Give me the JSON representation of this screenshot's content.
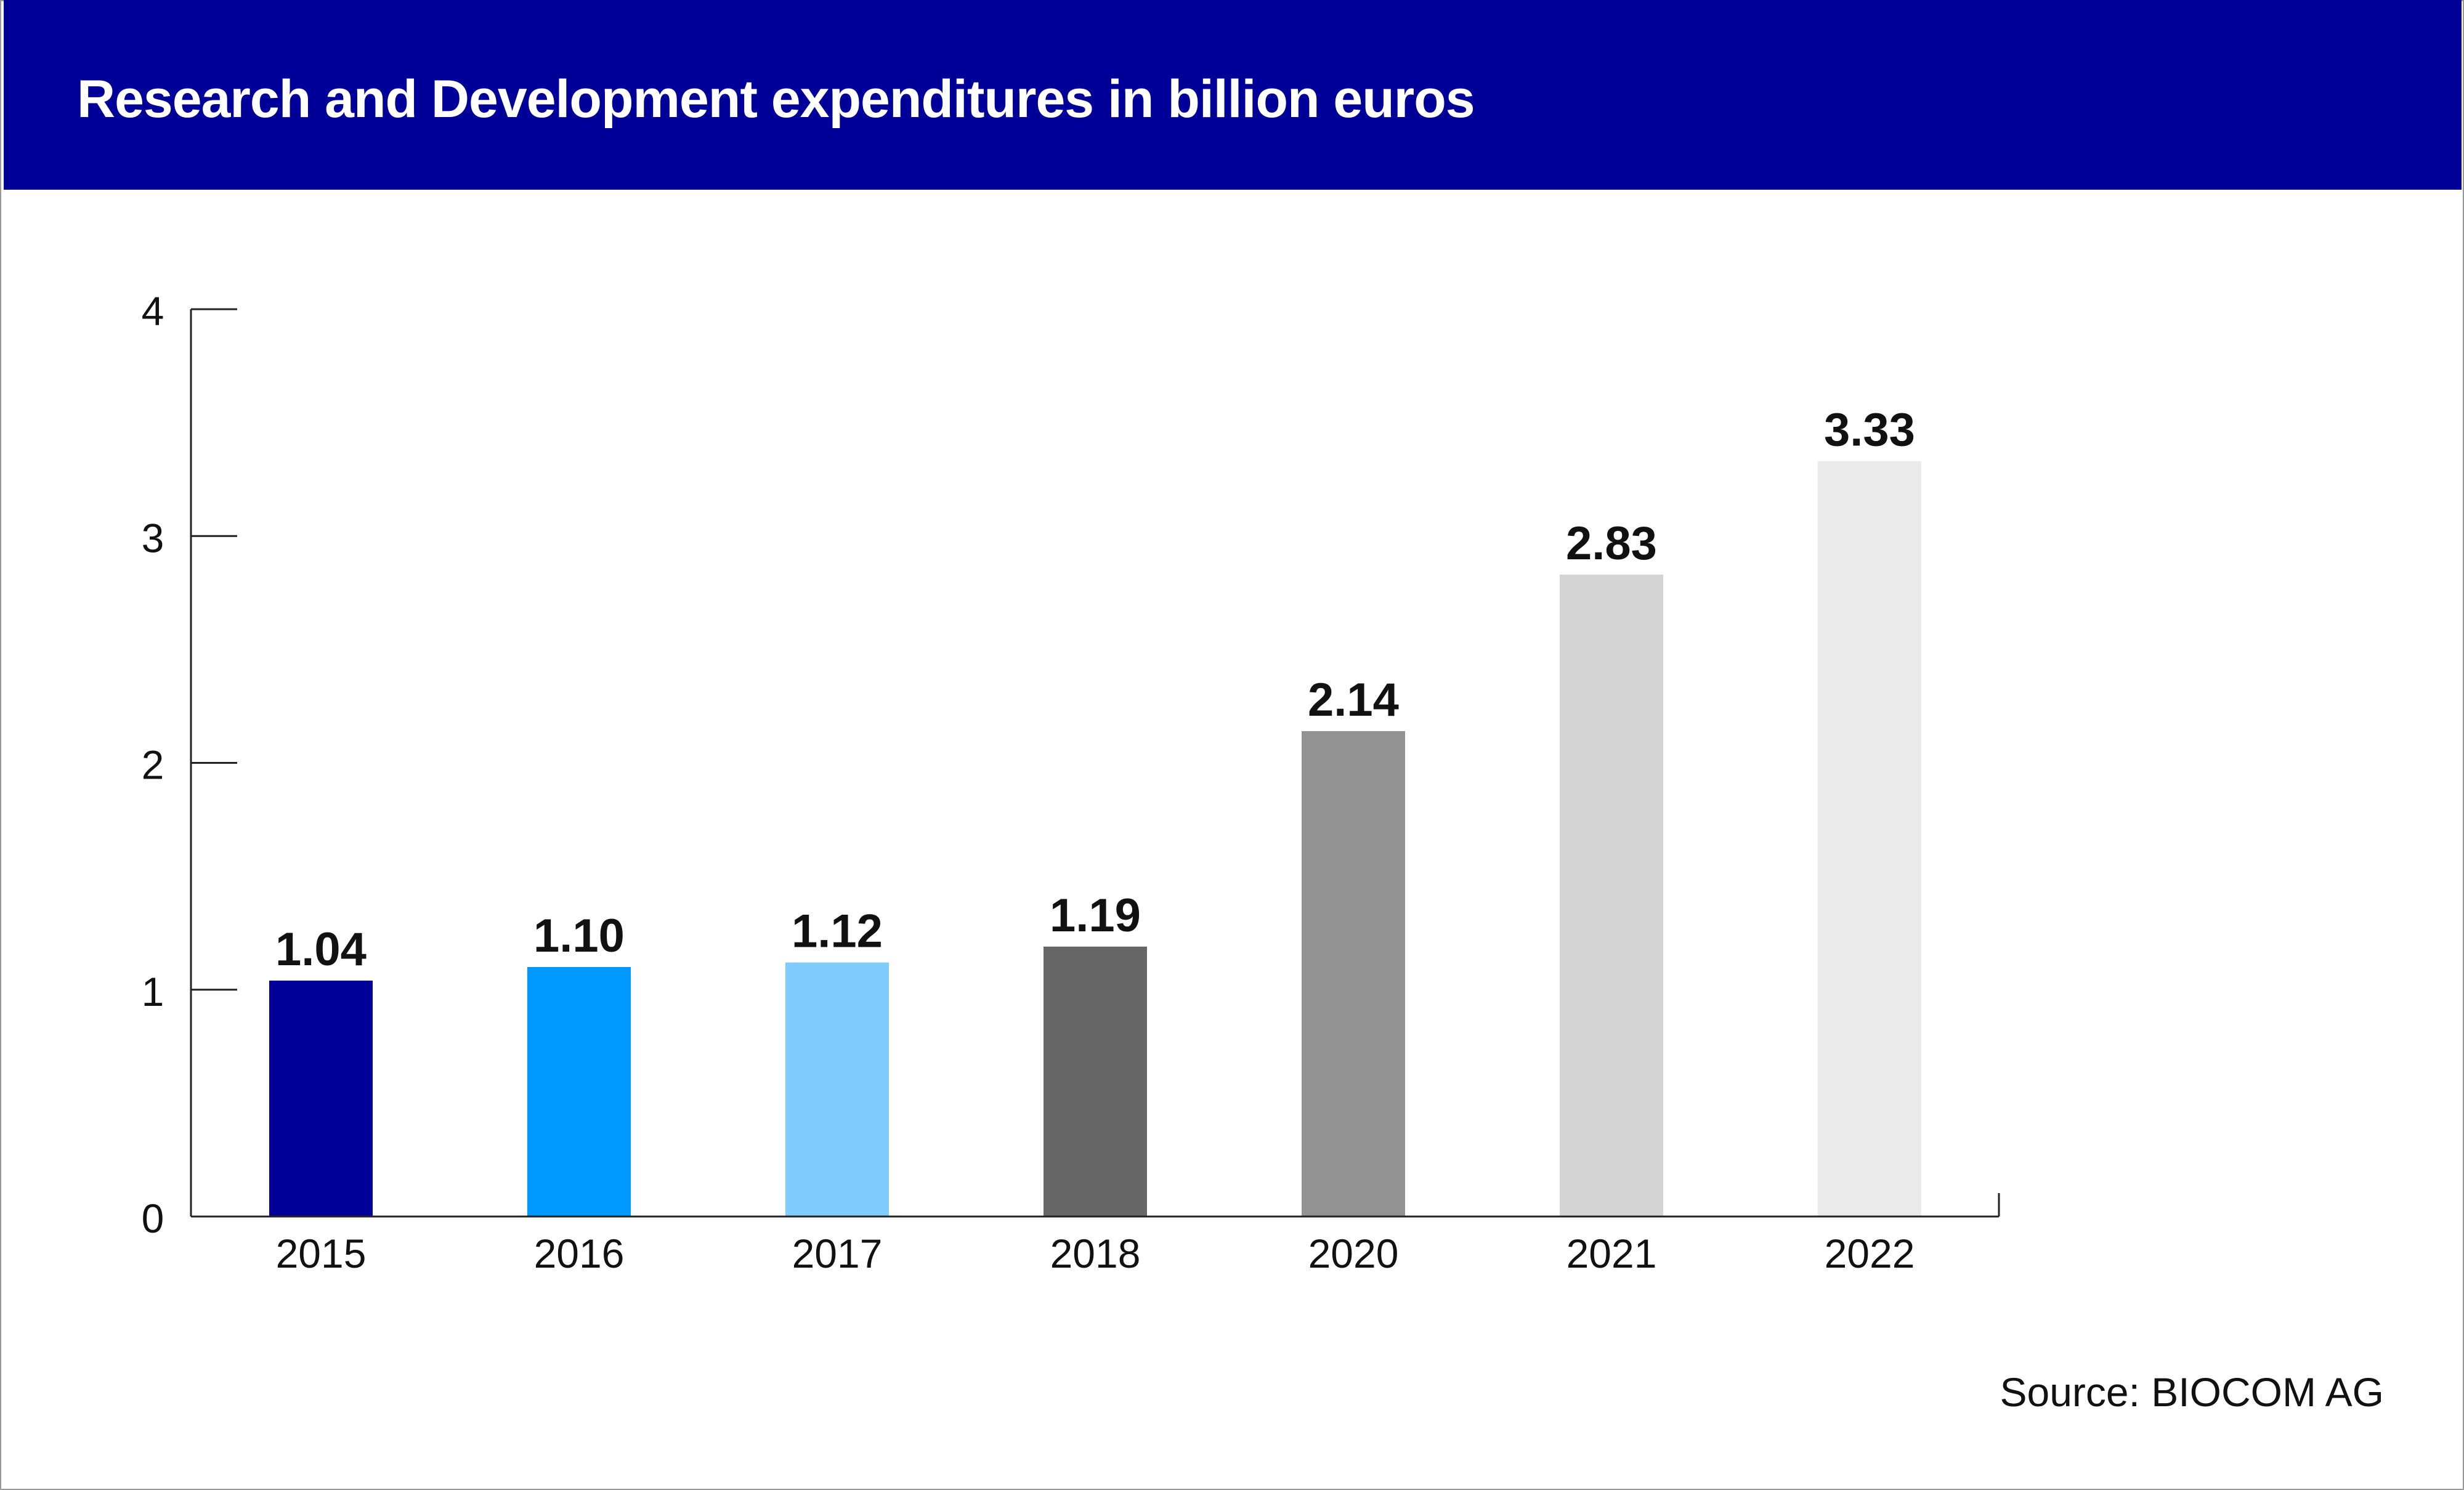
{
  "title": "Research and Development expenditures in billion euros",
  "source": "Source: BIOCOM AG",
  "colors": {
    "header_bg": "#000099",
    "title_text": "#ffffff",
    "axis": "#222222",
    "bars": [
      "#000099",
      "#0099ff",
      "#80ccff",
      "#666666",
      "#929292",
      "#d4d4d4",
      "#ebebeb"
    ]
  },
  "chart_data": {
    "type": "bar",
    "title": "Research and Development expenditures in billion euros",
    "xlabel": "",
    "ylabel": "",
    "categories": [
      "2015",
      "2016",
      "2017",
      "2018",
      "2020",
      "2021",
      "2022"
    ],
    "values": [
      1.04,
      1.1,
      1.12,
      1.19,
      2.14,
      2.83,
      3.33
    ],
    "value_labels": [
      "1.04",
      "1.10",
      "1.12",
      "1.19",
      "2.14",
      "2.83",
      "3.33"
    ],
    "ylim": [
      0,
      4
    ],
    "yticks": [
      0,
      1,
      2,
      3,
      4
    ],
    "grid": false,
    "legend": "none"
  }
}
